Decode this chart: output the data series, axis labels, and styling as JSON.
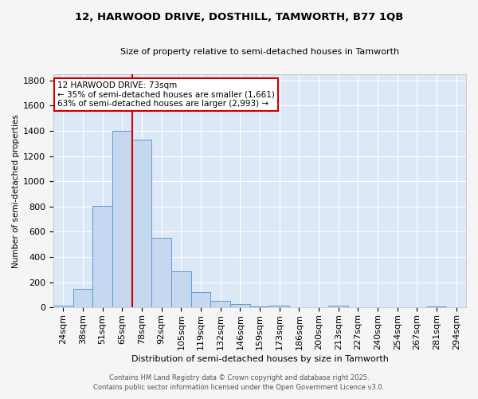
{
  "title_line1": "12, HARWOOD DRIVE, DOSTHILL, TAMWORTH, B77 1QB",
  "title_line2": "Size of property relative to semi-detached houses in Tamworth",
  "xlabel": "Distribution of semi-detached houses by size in Tamworth",
  "ylabel": "Number of semi-detached properties",
  "categories": [
    "24sqm",
    "38sqm",
    "51sqm",
    "65sqm",
    "78sqm",
    "92sqm",
    "105sqm",
    "119sqm",
    "132sqm",
    "146sqm",
    "159sqm",
    "173sqm",
    "186sqm",
    "200sqm",
    "213sqm",
    "227sqm",
    "240sqm",
    "254sqm",
    "267sqm",
    "281sqm",
    "294sqm"
  ],
  "values": [
    15,
    150,
    805,
    1400,
    1330,
    550,
    285,
    120,
    50,
    30,
    10,
    15,
    0,
    0,
    12,
    0,
    0,
    0,
    0,
    8,
    0
  ],
  "bar_color": "#c5d8ef",
  "bar_edge_color": "#5b9bd5",
  "bg_color": "#dce8f5",
  "grid_color": "#ffffff",
  "vline_color": "#cc0000",
  "annotation_title": "12 HARWOOD DRIVE: 73sqm",
  "annotation_line1": "← 35% of semi-detached houses are smaller (1,661)",
  "annotation_line2": "63% of semi-detached houses are larger (2,993) →",
  "annotation_box_color": "#cc0000",
  "ylim": [
    0,
    1850
  ],
  "fig_bg": "#f5f5f5",
  "footnote1": "Contains HM Land Registry data © Crown copyright and database right 2025.",
  "footnote2": "Contains public sector information licensed under the Open Government Licence v3.0."
}
